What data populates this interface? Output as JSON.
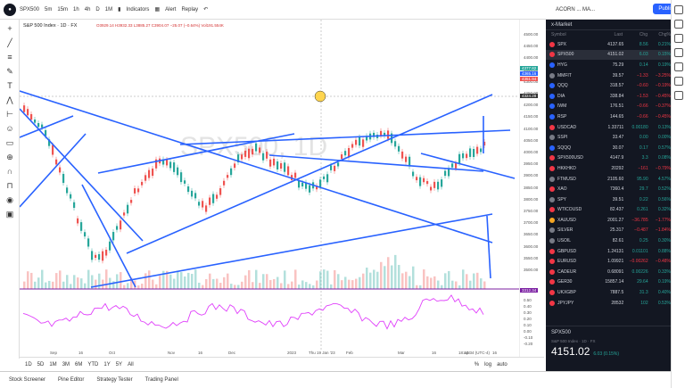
{
  "topbar": {
    "symbol": "SPX500",
    "intervals": [
      "5m",
      "15m",
      "1h",
      "4h",
      "D",
      "1M"
    ],
    "indicators_label": "Indicators",
    "alert_label": "Alert",
    "replay_label": "Replay",
    "account_label": "ACORN ... MA...",
    "publish_label": "Publish"
  },
  "chart": {
    "legend": "S&P 500 Index · 1D · FX",
    "ohlc": "O3929.14 H3932.33 L3885.27 C3904.07 −25.07 (−0.64%) Vol191.554K",
    "watermark": "SPX500, 1D",
    "date_labels": [
      "Sep",
      "16",
      "Oct",
      "Nov",
      "16",
      "Dec",
      "2023",
      "Thu 19 Jan '23",
      "Feb",
      "Mar",
      "16",
      "Apr",
      "16"
    ],
    "price_ticks": [
      "4500.00",
      "4450.00",
      "4400.00",
      "4350.00",
      "4300.00",
      "4250.00",
      "4200.00",
      "4150.00",
      "4100.00",
      "4050.00",
      "4000.00",
      "3950.00",
      "3900.00",
      "3850.00",
      "3800.00",
      "3750.00",
      "3700.00",
      "3650.00",
      "3600.00",
      "3550.00",
      "3500.00"
    ],
    "price_tags": [
      "4377.82",
      "4365.16",
      "4351.94",
      "4324.28",
      "3312.34"
    ],
    "rsi_ticks": [
      "0.50",
      "0.40",
      "0.30",
      "0.20",
      "0.10",
      "0.00",
      "-0.10",
      "-0.20"
    ],
    "time_readout": "18:10:34 (UTC-4)",
    "scale_options": [
      "%",
      "log",
      "auto"
    ]
  },
  "bottombar": {
    "ranges": [
      "1D",
      "5D",
      "1M",
      "3M",
      "6M",
      "YTD",
      "1Y",
      "5Y",
      "All"
    ]
  },
  "footer": {
    "tabs": [
      "Stock Screener",
      "Pine Editor",
      "Strategy Tester",
      "Trading Panel"
    ]
  },
  "watchlist": {
    "title": "x-Market",
    "col_symbol": "Symbol",
    "col_last": "Last",
    "col_chg": "Chg",
    "col_pct": "Chg%",
    "rows": [
      {
        "sym": "SPX",
        "last": "4137.65",
        "chg": "8.56",
        "pct": "0.21%",
        "color": "#f23645",
        "neg": false
      },
      {
        "sym": "SPX500",
        "last": "4151.02",
        "chg": "6.03",
        "pct": "0.15%",
        "color": "#f23645",
        "neg": false
      },
      {
        "sym": "HYG",
        "last": "75.29",
        "chg": "0.14",
        "pct": "0.19%",
        "color": "#2962ff",
        "neg": false
      },
      {
        "sym": "MMFIT",
        "last": "39.57",
        "chg": "−1.33",
        "pct": "−3.25%",
        "color": "#787b86",
        "neg": true
      },
      {
        "sym": "QQQ",
        "last": "318.57",
        "chg": "−0.60",
        "pct": "−0.19%",
        "color": "#2962ff",
        "neg": true
      },
      {
        "sym": "DIA",
        "last": "338.84",
        "chg": "−1.53",
        "pct": "−0.45%",
        "color": "#2962ff",
        "neg": true
      },
      {
        "sym": "IWM",
        "last": "176.51",
        "chg": "−0.66",
        "pct": "−0.37%",
        "color": "#2962ff",
        "neg": true
      },
      {
        "sym": "RSP",
        "last": "144.65",
        "chg": "−0.66",
        "pct": "−0.45%",
        "color": "#2962ff",
        "neg": true
      },
      {
        "sym": "USDCAD",
        "last": "1.33711",
        "chg": "0.00180",
        "pct": "0.13%",
        "color": "#f23645",
        "neg": false
      },
      {
        "sym": "SSPI",
        "last": "33.47",
        "chg": "0.00",
        "pct": "0.00%",
        "color": "#787b86",
        "neg": false
      },
      {
        "sym": "SQQQ",
        "last": "30.07",
        "chg": "0.17",
        "pct": "0.57%",
        "color": "#2962ff",
        "neg": false
      },
      {
        "sym": "SPX500USD",
        "last": "4147.9",
        "chg": "3.3",
        "pct": "0.08%",
        "color": "#f23645",
        "neg": false
      },
      {
        "sym": "HKKHKD",
        "last": "20292",
        "chg": "−161",
        "pct": "−0.79%",
        "color": "#f23645",
        "neg": true
      },
      {
        "sym": "FTMUSD",
        "last": "2105.60",
        "chg": "95.90",
        "pct": "4.57%",
        "color": "#787b86",
        "neg": false
      },
      {
        "sym": "XAO",
        "last": "7360.4",
        "chg": "29.7",
        "pct": "0.52%",
        "color": "#f23645",
        "neg": false
      },
      {
        "sym": "SPY",
        "last": "39.51",
        "chg": "0.22",
        "pct": "0.56%",
        "color": "#787b86",
        "neg": false
      },
      {
        "sym": "WTICOUSD",
        "last": "82.437",
        "chg": "0.261",
        "pct": "0.32%",
        "color": "#f23645",
        "neg": false
      },
      {
        "sym": "XAUUSD",
        "last": "2001.27",
        "chg": "−36.785",
        "pct": "−1.77%",
        "color": "#f5a623",
        "neg": true
      },
      {
        "sym": "SILVER",
        "last": "25.317",
        "chg": "−0.487",
        "pct": "−1.84%",
        "color": "#787b86",
        "neg": true
      },
      {
        "sym": "USOIL",
        "last": "82.61",
        "chg": "0.25",
        "pct": "0.30%",
        "color": "#787b86",
        "neg": false
      },
      {
        "sym": "GBPUSD",
        "last": "1.24131",
        "chg": "0.01101",
        "pct": "0.88%",
        "color": "#f23645",
        "neg": false
      },
      {
        "sym": "EURUSD",
        "last": "1.09921",
        "chg": "−0.00262",
        "pct": "−0.48%",
        "color": "#f23645",
        "neg": true
      },
      {
        "sym": "CADEUR",
        "last": "0.68091",
        "chg": "0.00226",
        "pct": "0.33%",
        "color": "#f23645",
        "neg": false
      },
      {
        "sym": "GER30",
        "last": "15857.14",
        "chg": "29.64",
        "pct": "0.19%",
        "color": "#f23645",
        "neg": false
      },
      {
        "sym": "UKXGBP",
        "last": "7887.5",
        "chg": "31.3",
        "pct": "0.40%",
        "color": "#f23645",
        "neg": false
      },
      {
        "sym": "JPYJPY",
        "last": "28532",
        "chg": "102",
        "pct": "0.53%",
        "color": "#f23645",
        "neg": false
      }
    ],
    "selected_index": 1
  },
  "detail": {
    "symbol": "SPX500",
    "subtitle": "S&P 500 Index · 1D · FX",
    "price": "4151.02",
    "change": "6.03 (0.15%)"
  },
  "colors": {
    "trend": "#2962ff",
    "up": "#26a69a",
    "down": "#ef5350",
    "rsi": "#e040fb"
  }
}
